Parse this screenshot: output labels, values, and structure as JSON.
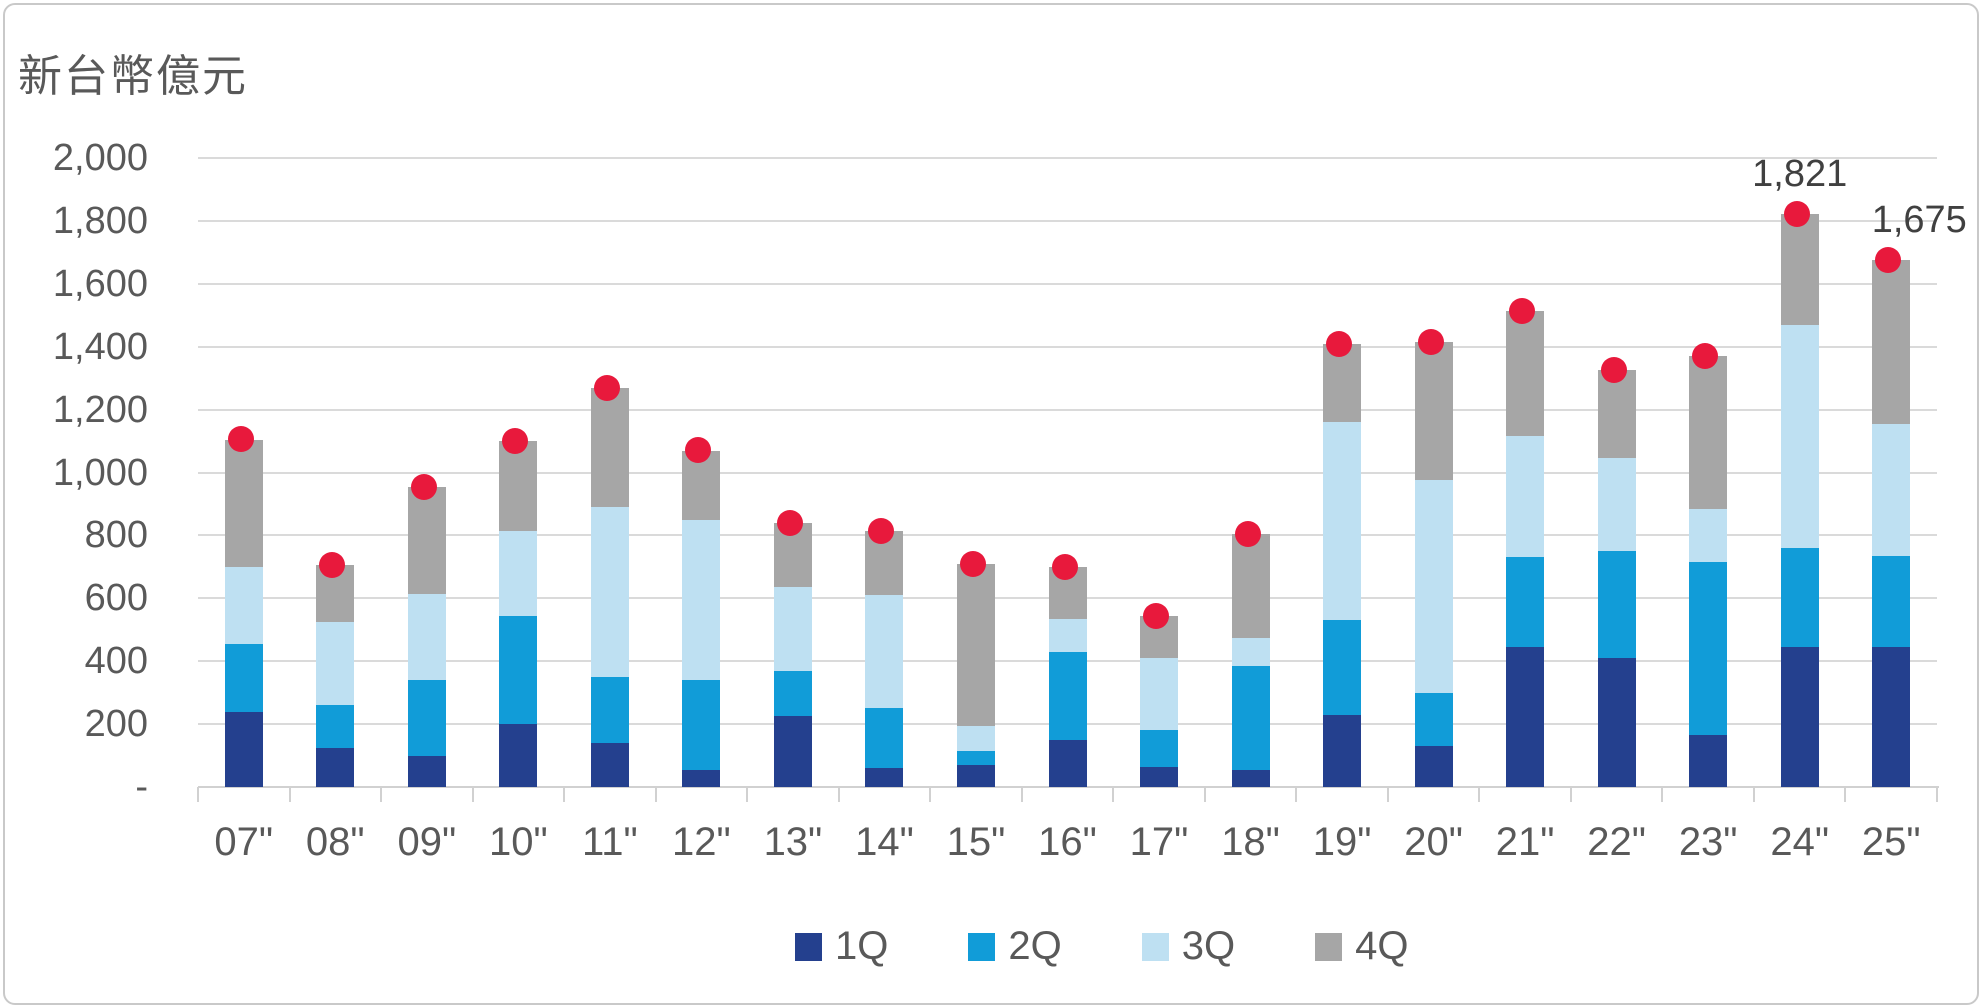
{
  "title": "新台幣億元",
  "colors": {
    "q1": "#24408E",
    "q2": "#119CD8",
    "q3": "#BEE0F2",
    "q4": "#A6A6A6",
    "dot": "#E8193C",
    "text": "#595959",
    "grid": "#DADADA",
    "axis": "#D1D1D1",
    "border": "#C9C9C9"
  },
  "y_axis": {
    "labels": [
      "2,000",
      "1,800",
      "1,600",
      "1,400",
      "1,200",
      "1,000",
      "800",
      "600",
      "400",
      "200",
      "-"
    ]
  },
  "legend": [
    {
      "label": "1Q",
      "color_key": "q1"
    },
    {
      "label": "2Q",
      "color_key": "q2"
    },
    {
      "label": "3Q",
      "color_key": "q3"
    },
    {
      "label": "4Q",
      "color_key": "q4"
    }
  ],
  "chart_data": {
    "type": "bar",
    "stacked": true,
    "title": "新台幣億元",
    "xlabel": "",
    "ylabel": "新台幣億元",
    "ylim": [
      0,
      2000
    ],
    "ytick_step": 200,
    "grid": true,
    "legend_position": "bottom",
    "marker": "red dot on each bar total",
    "categories": [
      "07\"",
      "08\"",
      "09\"",
      "10\"",
      "11\"",
      "12\"",
      "13\"",
      "14\"",
      "15\"",
      "16\"",
      "17\"",
      "18\"",
      "19\"",
      "20\"",
      "21\"",
      "22\"",
      "23\"",
      "24\"",
      "25\""
    ],
    "series": [
      {
        "name": "1Q",
        "values": [
          240,
          125,
          100,
          200,
          140,
          55,
          225,
          60,
          70,
          150,
          65,
          55,
          230,
          130,
          445,
          410,
          165,
          445,
          445
        ]
      },
      {
        "name": "2Q",
        "values": [
          215,
          135,
          240,
          345,
          210,
          285,
          145,
          190,
          45,
          280,
          115,
          330,
          300,
          170,
          285,
          340,
          550,
          315,
          290
        ]
      },
      {
        "name": "3Q",
        "values": [
          245,
          265,
          275,
          270,
          540,
          510,
          265,
          360,
          80,
          105,
          230,
          90,
          630,
          675,
          385,
          295,
          170,
          710,
          420
        ]
      },
      {
        "name": "4Q",
        "values": [
          405,
          180,
          340,
          285,
          380,
          220,
          205,
          205,
          515,
          165,
          135,
          330,
          250,
          440,
          400,
          280,
          485,
          351,
          520
        ]
      }
    ],
    "totals": [
      1105,
      705,
      955,
      1100,
      1270,
      1070,
      840,
      815,
      710,
      700,
      545,
      805,
      1410,
      1415,
      1515,
      1325,
      1370,
      1821,
      1675
    ],
    "annotations": [
      {
        "category": "24\"",
        "index": 17,
        "text": "1,821",
        "dx": 0
      },
      {
        "category": "25\"",
        "index": 18,
        "text": "1,675",
        "dx": 28
      }
    ]
  }
}
